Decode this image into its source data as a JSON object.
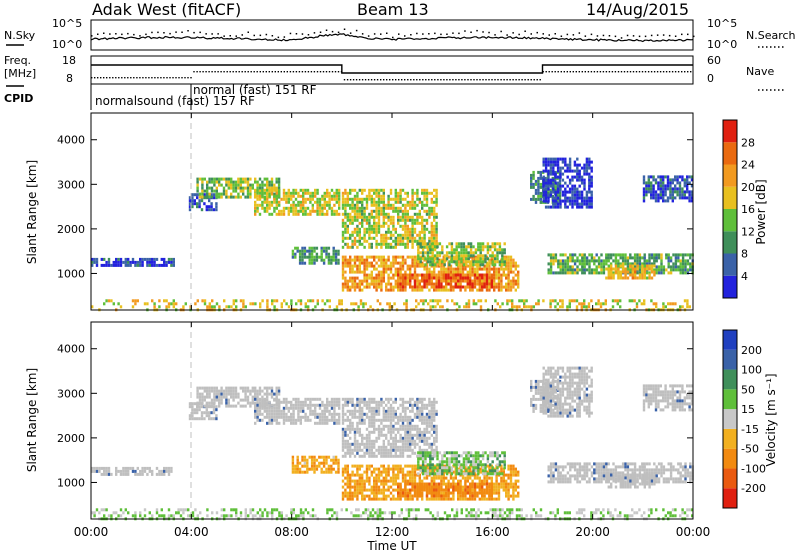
{
  "header": {
    "radar": "Adak West (fitACF)",
    "beam": "Beam 13",
    "date": "14/Aug/2015"
  },
  "time_axis": {
    "label": "Time UT",
    "ticks": [
      "00:00",
      "04:00",
      "08:00",
      "12:00",
      "16:00",
      "20:00",
      "00:00"
    ],
    "range_hours": [
      0,
      24
    ]
  },
  "noise_panel": {
    "left_label": "N.Sky",
    "right_label": "N.Search",
    "left_ticks": [
      "10^5",
      "10^0"
    ],
    "right_ticks": [
      "10^5",
      "10^0"
    ]
  },
  "freq_panel": {
    "left_label_1": "Freq.",
    "left_label_2": "[MHz]",
    "right_label": "Nave",
    "left_ticks": [
      "18",
      "8"
    ],
    "right_ticks": [
      "60",
      "0"
    ]
  },
  "cpid": {
    "label": "CPID",
    "entries": [
      {
        "name": "normalsound (fast) 157 RF",
        "start_hour": 0
      },
      {
        "name": "normal (fast) 151 RF",
        "start_hour": 4
      }
    ]
  },
  "colors": {
    "power_scale": [
      "#2222dd",
      "#3a62a8",
      "#3f8f5a",
      "#5fbf3a",
      "#e8c020",
      "#f29a20",
      "#ea6a10",
      "#e02010"
    ],
    "velocity_scale": [
      "#2040c0",
      "#3a62a8",
      "#3f8f5a",
      "#5fbf3a",
      "#c8c8c8",
      "#f2b020",
      "#f28a10",
      "#ea5a10",
      "#e02010"
    ],
    "ground_scatter": "#bfbfbf",
    "dashed_line": "#c0c0c0"
  },
  "chart_data": [
    {
      "type": "heatmap",
      "panel": "power",
      "ylabel": "Slant Range [km]",
      "yticks": [
        "1000",
        "2000",
        "3000",
        "4000"
      ],
      "ylim": [
        180,
        4600
      ],
      "colorbar_label": "Power [dB]",
      "colorbar_ticks": [
        "4",
        "8",
        "12",
        "16",
        "20",
        "24",
        "28"
      ],
      "colorbar_range": [
        0,
        32
      ],
      "cpid_change_hour": 4.0,
      "echo_regions": [
        {
          "t0": 0.0,
          "t1": 3.3,
          "r0": 1150,
          "r1": 1350,
          "level": 4
        },
        {
          "t0": 3.9,
          "t1": 5.0,
          "r0": 2400,
          "r1": 2800,
          "level": 5
        },
        {
          "t0": 4.2,
          "t1": 7.5,
          "r0": 2700,
          "r1": 3150,
          "level": 14
        },
        {
          "t0": 6.5,
          "t1": 9.9,
          "r0": 2300,
          "r1": 2900,
          "level": 17
        },
        {
          "t0": 8.0,
          "t1": 9.9,
          "r0": 1200,
          "r1": 1600,
          "level": 10
        },
        {
          "t0": 10.0,
          "t1": 13.8,
          "r0": 1600,
          "r1": 2900,
          "level": 16
        },
        {
          "t0": 10.0,
          "t1": 17.0,
          "r0": 600,
          "r1": 1400,
          "level": 22
        },
        {
          "t0": 12.2,
          "t1": 16.0,
          "r0": 700,
          "r1": 1000,
          "level": 27
        },
        {
          "t0": 13.0,
          "t1": 16.5,
          "r0": 1200,
          "r1": 1700,
          "level": 15
        },
        {
          "t0": 17.5,
          "t1": 18.7,
          "r0": 2600,
          "r1": 3300,
          "level": 9
        },
        {
          "t0": 18.0,
          "t1": 20.0,
          "r0": 2500,
          "r1": 3600,
          "level": 3
        },
        {
          "t0": 18.2,
          "t1": 24.0,
          "r0": 1000,
          "r1": 1450,
          "level": 12
        },
        {
          "t0": 20.5,
          "t1": 22.5,
          "r0": 900,
          "r1": 1200,
          "level": 20
        },
        {
          "t0": 22.0,
          "t1": 24.0,
          "r0": 2600,
          "r1": 3200,
          "level": 5
        },
        {
          "t0": 0.0,
          "t1": 24.0,
          "r0": 180,
          "r1": 420,
          "level": 18
        }
      ]
    },
    {
      "type": "heatmap",
      "panel": "velocity",
      "ylabel": "Slant Range [km]",
      "yticks": [
        "1000",
        "2000",
        "3000",
        "4000"
      ],
      "ylim": [
        180,
        4600
      ],
      "colorbar_label": "Velocity [m s⁻¹]",
      "colorbar_ticks": [
        "200",
        "100",
        "50",
        "15",
        "-15",
        "-50",
        "-100",
        "-200"
      ],
      "colorbar_range": [
        -250,
        250
      ],
      "cpid_change_hour": 4.0,
      "echo_regions": [
        {
          "t0": 0.0,
          "t1": 3.3,
          "r0": 1150,
          "r1": 1350,
          "velocity": 0
        },
        {
          "t0": 3.9,
          "t1": 5.0,
          "r0": 2400,
          "r1": 2800,
          "velocity": 0
        },
        {
          "t0": 4.2,
          "t1": 7.5,
          "r0": 2700,
          "r1": 3150,
          "velocity": 0
        },
        {
          "t0": 6.5,
          "t1": 9.9,
          "r0": 2300,
          "r1": 2900,
          "velocity": 0
        },
        {
          "t0": 8.0,
          "t1": 9.9,
          "r0": 1200,
          "r1": 1600,
          "velocity": -40
        },
        {
          "t0": 10.0,
          "t1": 13.8,
          "r0": 1600,
          "r1": 2900,
          "velocity": 0
        },
        {
          "t0": 10.0,
          "t1": 17.0,
          "r0": 600,
          "r1": 1400,
          "velocity": -45
        },
        {
          "t0": 12.2,
          "t1": 16.0,
          "r0": 700,
          "r1": 1000,
          "velocity": -80
        },
        {
          "t0": 13.0,
          "t1": 16.5,
          "r0": 1200,
          "r1": 1700,
          "velocity": 30
        },
        {
          "t0": 17.5,
          "t1": 18.7,
          "r0": 2600,
          "r1": 3300,
          "velocity": 0
        },
        {
          "t0": 18.0,
          "t1": 20.0,
          "r0": 2500,
          "r1": 3600,
          "velocity": 0
        },
        {
          "t0": 18.2,
          "t1": 24.0,
          "r0": 1000,
          "r1": 1450,
          "velocity": 0
        },
        {
          "t0": 20.5,
          "t1": 22.5,
          "r0": 900,
          "r1": 1200,
          "velocity": 0
        },
        {
          "t0": 22.0,
          "t1": 24.0,
          "r0": 2600,
          "r1": 3200,
          "velocity": 0
        },
        {
          "t0": 0.0,
          "t1": 24.0,
          "r0": 180,
          "r1": 420,
          "velocity": 20
        }
      ]
    }
  ]
}
